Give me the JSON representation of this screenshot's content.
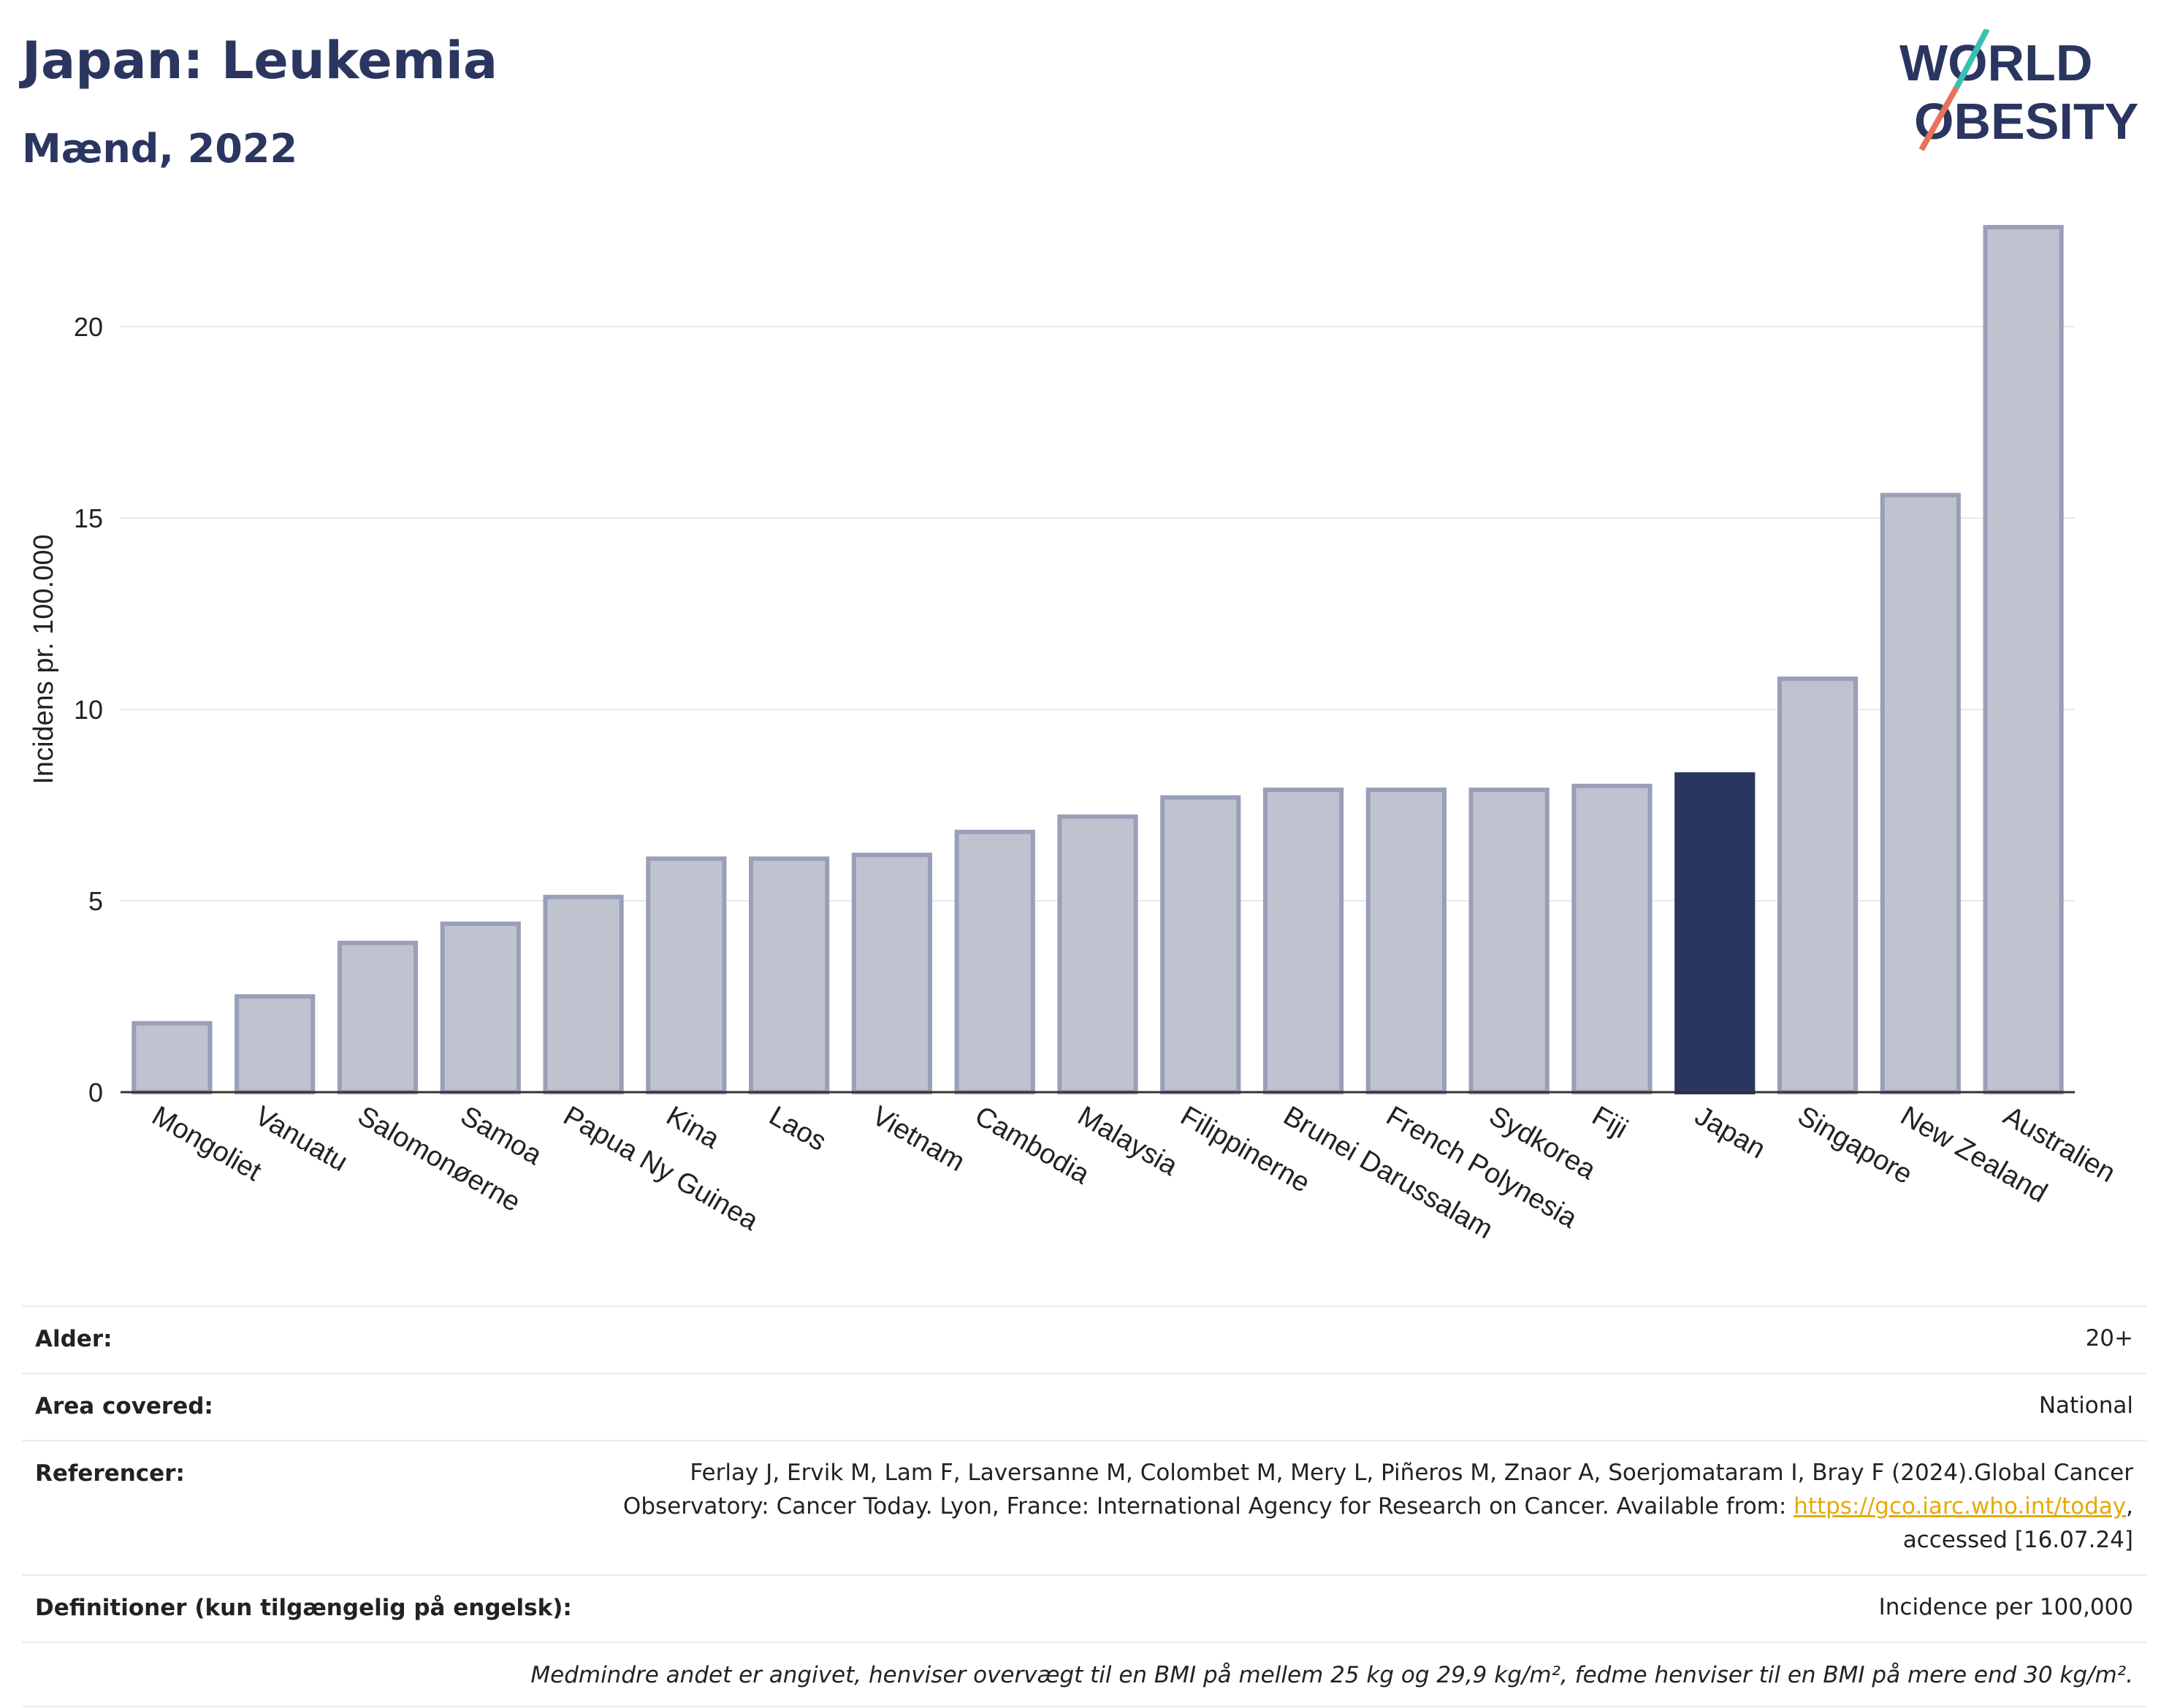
{
  "header": {
    "title": "Japan: Leukemia",
    "subtitle": "Mænd, 2022",
    "logo_line1": "WORLD",
    "logo_line2": "OBESITY"
  },
  "colors": {
    "bar": "#bfc3d0",
    "bar_stroke": "#9a9fb8",
    "highlight": "#2a3660",
    "grid": "#e6e8f0",
    "text": "#222222",
    "title": "#2a3660"
  },
  "chart_data": {
    "type": "bar",
    "categories": [
      "Mongoliet",
      "Vanuatu",
      "Salomonøerne",
      "Samoa",
      "Papua Ny Guinea",
      "Kina",
      "Laos",
      "Vietnam",
      "Cambodia",
      "Malaysia",
      "Filippinerne",
      "Brunei Darussalam",
      "French Polynesia",
      "Sydkorea",
      "Fiji",
      "Japan",
      "Singapore",
      "New Zealand",
      "Australien"
    ],
    "values": [
      1.8,
      2.5,
      3.9,
      4.4,
      5.1,
      6.1,
      6.1,
      6.2,
      6.8,
      7.2,
      7.7,
      7.9,
      7.9,
      7.9,
      8.0,
      8.3,
      10.8,
      15.6,
      22.6
    ],
    "highlight": "Japan",
    "ylabel": "Incidens pr. 100.000",
    "xlabel": "",
    "ylim": [
      0,
      23
    ],
    "yticks": [
      0,
      5,
      10,
      15,
      20
    ],
    "grid": true
  },
  "meta": {
    "rows": [
      {
        "label": "Alder:",
        "value": "20+"
      },
      {
        "label": "Area covered:",
        "value": "National"
      },
      {
        "label": "Referencer:",
        "value_lines": [
          "Ferlay J, Ervik M, Lam F, Laversanne M, Colombet M, Mery L, Piñeros M, Znaor A, Soerjomataram I, Bray F (2024).Global Cancer",
          "Observatory: Cancer Today. Lyon, France: International Agency for Research on Cancer. Available from: ",
          "https://gco.iarc.who.int/today",
          ",",
          "accessed [16.07.24]"
        ]
      },
      {
        "label": "Definitioner (kun tilgængelig på engelsk):",
        "value": "Incidence per 100,000"
      }
    ],
    "note": "Medmindre andet er angivet, henviser overvægt til en BMI på mellem 25 kg og 29,9 kg/m², fedme henviser til en BMI på mere end 30 kg/m²."
  }
}
